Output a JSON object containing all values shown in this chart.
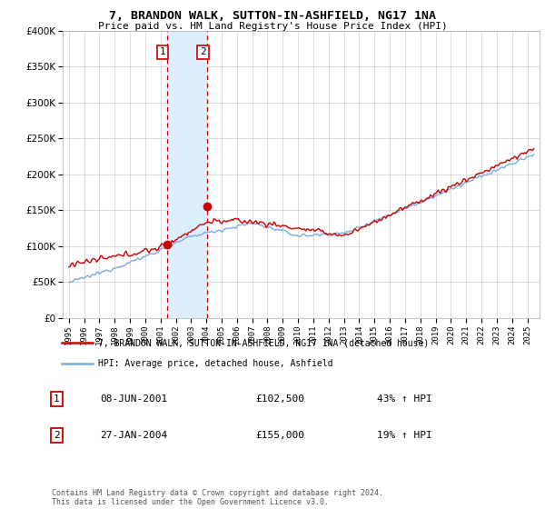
{
  "title": "7, BRANDON WALK, SUTTON-IN-ASHFIELD, NG17 1NA",
  "subtitle": "Price paid vs. HM Land Registry's House Price Index (HPI)",
  "legend_line1": "7, BRANDON WALK, SUTTON-IN-ASHFIELD, NG17 1NA (detached house)",
  "legend_line2": "HPI: Average price, detached house, Ashfield",
  "transaction1_date": "08-JUN-2001",
  "transaction1_price": "£102,500",
  "transaction1_hpi": "43% ↑ HPI",
  "transaction1_x": 2001.436,
  "transaction1_y": 102500,
  "transaction2_date": "27-JAN-2004",
  "transaction2_price": "£155,000",
  "transaction2_hpi": "19% ↑ HPI",
  "transaction2_x": 2004.074,
  "transaction2_y": 155000,
  "footnote": "Contains HM Land Registry data © Crown copyright and database right 2024.\nThis data is licensed under the Open Government Licence v3.0.",
  "ylim": [
    0,
    400000
  ],
  "yticks": [
    0,
    50000,
    100000,
    150000,
    200000,
    250000,
    300000,
    350000,
    400000
  ],
  "xlim_start": 1994.6,
  "xlim_end": 2025.8,
  "line_color_property": "#cc0000",
  "line_color_hpi": "#7aaddc",
  "highlight_color": "#ddeeff",
  "vline_color": "#cc0000",
  "marker_color": "#cc0000",
  "grid_color": "#cccccc",
  "background_color": "#ffffff"
}
